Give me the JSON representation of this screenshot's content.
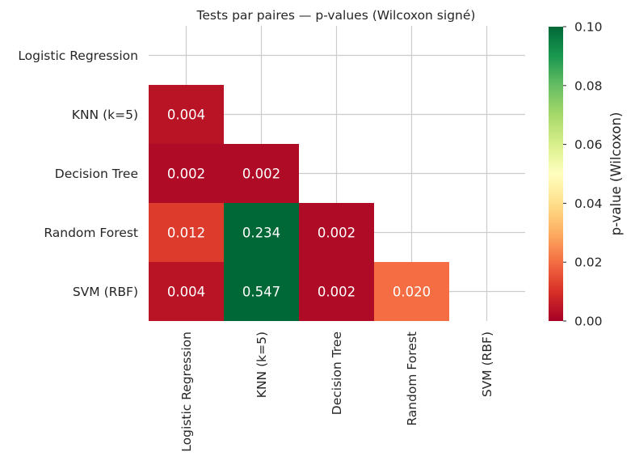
{
  "chart_data": {
    "type": "heatmap",
    "title": "Tests par paires — p-values (Wilcoxon signé)",
    "row_labels": [
      "Logistic Regression",
      "KNN (k=5)",
      "Decision Tree",
      "Random Forest",
      "SVM (RBF)"
    ],
    "col_labels": [
      "Logistic Regression",
      "KNN (k=5)",
      "Decision Tree",
      "Random Forest",
      "SVM (RBF)"
    ],
    "mask": "upper-triangle-including-diagonal",
    "cells": [
      {
        "row": 1,
        "col": 0,
        "value": 0.004,
        "label": "0.004"
      },
      {
        "row": 2,
        "col": 0,
        "value": 0.002,
        "label": "0.002"
      },
      {
        "row": 2,
        "col": 1,
        "value": 0.002,
        "label": "0.002"
      },
      {
        "row": 3,
        "col": 0,
        "value": 0.012,
        "label": "0.012"
      },
      {
        "row": 3,
        "col": 1,
        "value": 0.234,
        "label": "0.234"
      },
      {
        "row": 3,
        "col": 2,
        "value": 0.002,
        "label": "0.002"
      },
      {
        "row": 4,
        "col": 0,
        "value": 0.004,
        "label": "0.004"
      },
      {
        "row": 4,
        "col": 1,
        "value": 0.547,
        "label": "0.547"
      },
      {
        "row": 4,
        "col": 2,
        "value": 0.002,
        "label": "0.002"
      },
      {
        "row": 4,
        "col": 3,
        "value": 0.02,
        "label": "0.020"
      }
    ],
    "colorbar": {
      "label": "p-value (Wilcoxon)",
      "vmin": 0.0,
      "vmax": 0.1,
      "colormap": "RdYlGn",
      "ticks": [
        0.0,
        0.02,
        0.04,
        0.06,
        0.08,
        0.1
      ],
      "tick_labels": [
        "0.00",
        "0.02",
        "0.04",
        "0.06",
        "0.08",
        "0.10"
      ]
    },
    "grid": true
  }
}
